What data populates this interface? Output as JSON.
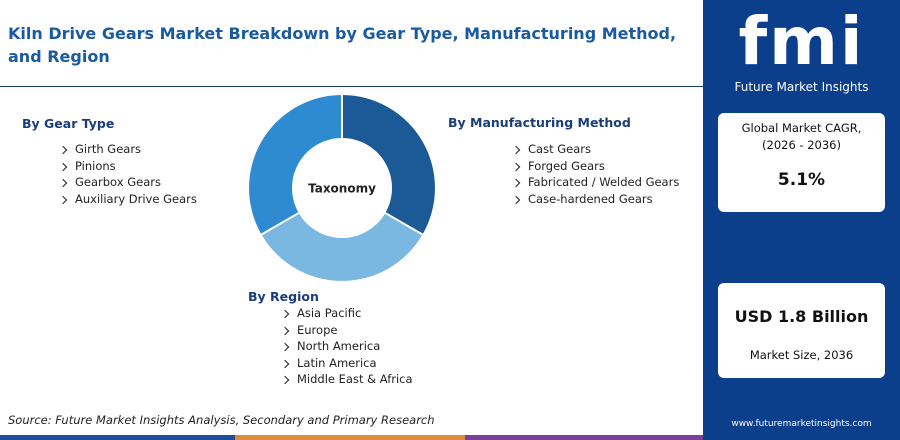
{
  "title": "Kiln Drive Gears Market Breakdown by Gear Type, Manufacturing Method, and Region",
  "taxonomy": {
    "center_label": "Taxonomy",
    "groups": [
      {
        "heading": "By Gear Type",
        "items": [
          "Girth Gears",
          "Pinions",
          "Gearbox Gears",
          "Auxiliary Drive Gears"
        ]
      },
      {
        "heading": "By Manufacturing Method",
        "items": [
          "Cast Gears",
          "Forged Gears",
          "Fabricated / Welded Gears",
          "Case-hardened Gears"
        ]
      },
      {
        "heading": "By Region",
        "items": [
          "Asia Pacific",
          "Europe",
          "North America",
          "Latin America",
          "Middle East & Africa"
        ]
      }
    ]
  },
  "logo": {
    "mark": "fmi",
    "name": "Future Market Insights"
  },
  "cagr": {
    "label": "Global Market CAGR, (2026 - 2036)",
    "value": "5.1%"
  },
  "market_size": {
    "value": "USD 1.8 Billion",
    "label": "Market Size, 2036"
  },
  "source": "Source: Future Market Insights Analysis, Secondary and Primary Research",
  "website": "www.futuremarketinsights.com"
}
